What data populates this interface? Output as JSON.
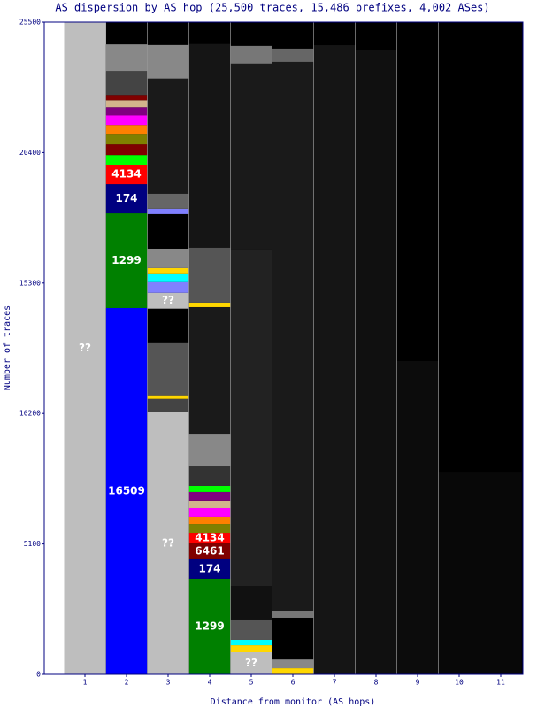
{
  "chart_data": {
    "type": "stacked-bar",
    "title": "AS dispersion by AS hop (25,500 traces, 15,486 prefixes, 4,002 ASes)",
    "x_label": "Distance from monitor (AS hops)",
    "y_label": "Number of traces",
    "categories": [
      "1",
      "2",
      "3",
      "4",
      "5",
      "6",
      "7",
      "8",
      "9",
      "10",
      "11"
    ],
    "ylim": [
      0,
      25500
    ],
    "yticks": [
      0,
      5100,
      10200,
      15300,
      20400,
      25500
    ],
    "columns": [
      [
        {
          "value": 25500,
          "color": "#bebebe",
          "label": "??"
        }
      ],
      [
        {
          "value": 14325,
          "color": "#0000ff",
          "label": "16509"
        },
        {
          "value": 3700,
          "color": "#008000",
          "label": "1299"
        },
        {
          "value": 1140,
          "color": "#000080",
          "label": "174"
        },
        {
          "value": 760,
          "color": "#ff0000",
          "label": "4134"
        },
        {
          "value": 380,
          "color": "#00ff00"
        },
        {
          "value": 415,
          "color": "#800000"
        },
        {
          "value": 415,
          "color": "#808000"
        },
        {
          "value": 345,
          "color": "#ff8000"
        },
        {
          "value": 380,
          "color": "#ff00ff"
        },
        {
          "value": 310,
          "color": "#800080"
        },
        {
          "value": 275,
          "color": "#d2b48c"
        },
        {
          "value": 210,
          "color": "#800000"
        },
        {
          "value": 935,
          "color": "#444444"
        },
        {
          "value": 1040,
          "color": "#888888"
        }
      ],
      [
        {
          "value": 10250,
          "color": "#bebebe",
          "label": "??"
        },
        {
          "value": 520,
          "color": "#444444"
        },
        {
          "value": 140,
          "color": "#ffd700"
        },
        {
          "value": 2040,
          "color": "#555555"
        },
        {
          "value": 1350,
          "color": "#000000"
        },
        {
          "value": 620,
          "color": "#bebebe",
          "label": "??"
        },
        {
          "value": 415,
          "color": "#8080ff"
        },
        {
          "value": 310,
          "color": "#00ffff"
        },
        {
          "value": 240,
          "color": "#ffd700"
        },
        {
          "value": 760,
          "color": "#888888"
        },
        {
          "value": 1350,
          "color": "#000000"
        },
        {
          "value": 210,
          "color": "#8080ff"
        },
        {
          "value": 590,
          "color": "#666666"
        },
        {
          "value": 4500,
          "color": "#1a1a1a"
        },
        {
          "value": 1310,
          "color": "#888888"
        }
      ],
      [
        {
          "value": 3740,
          "color": "#008000",
          "label": "1299"
        },
        {
          "value": 760,
          "color": "#000080",
          "label": "174"
        },
        {
          "value": 620,
          "color": "#800000",
          "label": "6461"
        },
        {
          "value": 415,
          "color": "#ff0000",
          "label": "4134"
        },
        {
          "value": 345,
          "color": "#808000"
        },
        {
          "value": 280,
          "color": "#ff8000"
        },
        {
          "value": 345,
          "color": "#ff00ff"
        },
        {
          "value": 280,
          "color": "#d2b48c"
        },
        {
          "value": 345,
          "color": "#800080"
        },
        {
          "value": 240,
          "color": "#00ff00"
        },
        {
          "value": 760,
          "color": "#333333"
        },
        {
          "value": 1280,
          "color": "#888888"
        },
        {
          "value": 4950,
          "color": "#1a1a1a"
        },
        {
          "value": 175,
          "color": "#ffd700"
        },
        {
          "value": 2150,
          "color": "#555555"
        },
        {
          "value": 7960,
          "color": "#151515"
        }
      ],
      [
        {
          "value": 865,
          "color": "#bebebe",
          "label": "??"
        },
        {
          "value": 275,
          "color": "#ffd700"
        },
        {
          "value": 210,
          "color": "#00ffff"
        },
        {
          "value": 800,
          "color": "#555555"
        },
        {
          "value": 1310,
          "color": "#111111"
        },
        {
          "value": 13150,
          "color": "#222222"
        },
        {
          "value": 7270,
          "color": "#1a1a1a"
        },
        {
          "value": 690,
          "color": "#777777"
        }
      ],
      [
        {
          "value": 240,
          "color": "#ffd700"
        },
        {
          "value": 345,
          "color": "#888888"
        },
        {
          "value": 1630,
          "color": "#000000"
        },
        {
          "value": 280,
          "color": "#777777"
        },
        {
          "value": 21450,
          "color": "#1a1a1a"
        },
        {
          "value": 520,
          "color": "#666666"
        }
      ],
      [
        {
          "value": 24600,
          "color": "#151515"
        }
      ],
      [
        {
          "value": 24400,
          "color": "#101010"
        }
      ],
      [
        {
          "value": 12250,
          "color": "#0c0c0c"
        }
      ],
      [
        {
          "value": 7920,
          "color": "#080808"
        }
      ],
      [
        {
          "value": 7920,
          "color": "#080808"
        }
      ]
    ]
  }
}
